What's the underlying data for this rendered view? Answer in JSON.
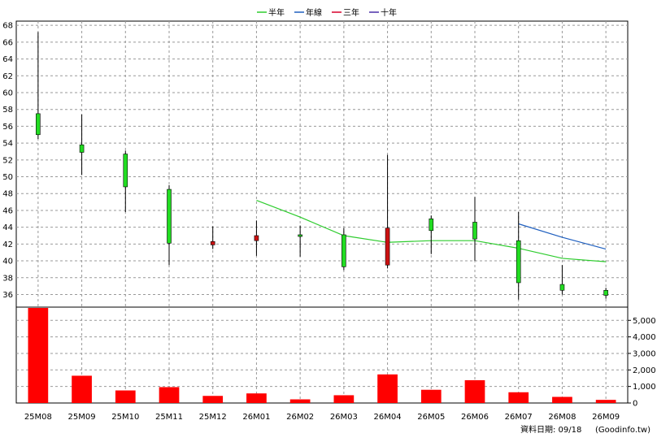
{
  "legend": [
    {
      "label": "半年",
      "color": "#2ecc2e"
    },
    {
      "label": "年線",
      "color": "#1f5fbf"
    },
    {
      "label": "三年",
      "color": "#d8002a"
    },
    {
      "label": "十年",
      "color": "#4b2fa8"
    }
  ],
  "footer": {
    "date_text": "資料日期: 09/18",
    "source_text": "(Goodinfo.tw)"
  },
  "chart_data": {
    "type": "candlestick",
    "categories": [
      "25M08",
      "25M09",
      "25M10",
      "25M11",
      "25M12",
      "26M01",
      "26M02",
      "26M03",
      "26M04",
      "26M05",
      "26M06",
      "26M07",
      "26M08",
      "26M09"
    ],
    "price_ylim": [
      34.5,
      68.5
    ],
    "price_ticks": [
      "36",
      "38",
      "40",
      "42",
      "44",
      "46",
      "48",
      "50",
      "52",
      "54",
      "56",
      "58",
      "60",
      "62",
      "64",
      "66",
      "68"
    ],
    "candles": [
      {
        "open": 55.0,
        "close": 57.5,
        "high": 67.2,
        "low": 54.5
      },
      {
        "open": 52.9,
        "close": 53.8,
        "high": 57.4,
        "low": 50.2
      },
      {
        "open": 48.8,
        "close": 52.7,
        "high": 53.1,
        "low": 45.8
      },
      {
        "open": 42.1,
        "close": 48.5,
        "high": 49.0,
        "low": 39.5
      },
      {
        "open": 42.3,
        "close": 41.9,
        "high": 44.1,
        "low": 41.4
      },
      {
        "open": 43.0,
        "close": 42.4,
        "high": 44.8,
        "low": 40.6
      },
      {
        "open": 42.9,
        "close": 43.1,
        "high": 44.2,
        "low": 40.5
      },
      {
        "open": 39.3,
        "close": 43.1,
        "high": 43.9,
        "low": 38.9
      },
      {
        "open": 43.9,
        "close": 39.5,
        "high": 52.6,
        "low": 39.1
      },
      {
        "open": 43.6,
        "close": 45.0,
        "high": 45.4,
        "low": 40.8
      },
      {
        "open": 42.6,
        "close": 44.6,
        "high": 47.6,
        "low": 40.0
      },
      {
        "open": 37.4,
        "close": 42.4,
        "high": 45.8,
        "low": 35.4
      },
      {
        "open": 36.5,
        "close": 37.2,
        "high": 39.5,
        "low": 36.0
      },
      {
        "open": 35.9,
        "close": 36.5,
        "high": 36.8,
        "low": 35.5
      }
    ],
    "series": [
      {
        "name": "半年",
        "color": "#2ecc2e",
        "values": [
          null,
          null,
          null,
          null,
          null,
          47.2,
          45.2,
          43.0,
          42.2,
          42.4,
          42.4,
          41.5,
          40.3,
          39.9
        ]
      },
      {
        "name": "年線",
        "color": "#1f5fbf",
        "values": [
          null,
          null,
          null,
          null,
          null,
          null,
          null,
          null,
          null,
          null,
          null,
          44.4,
          42.8,
          41.4
        ]
      }
    ],
    "volume_ylim": [
      0,
      5800
    ],
    "volume_ticks": [
      "0",
      "1,000",
      "2,000",
      "3,000",
      "4,000",
      "5,000"
    ],
    "volume": [
      5750,
      1650,
      760,
      960,
      430,
      580,
      220,
      470,
      1730,
      800,
      1380,
      650,
      370,
      190
    ],
    "up_color": "#22dd22",
    "down_color": "#cc1111",
    "volume_color": "#ff0000",
    "grid": true
  }
}
